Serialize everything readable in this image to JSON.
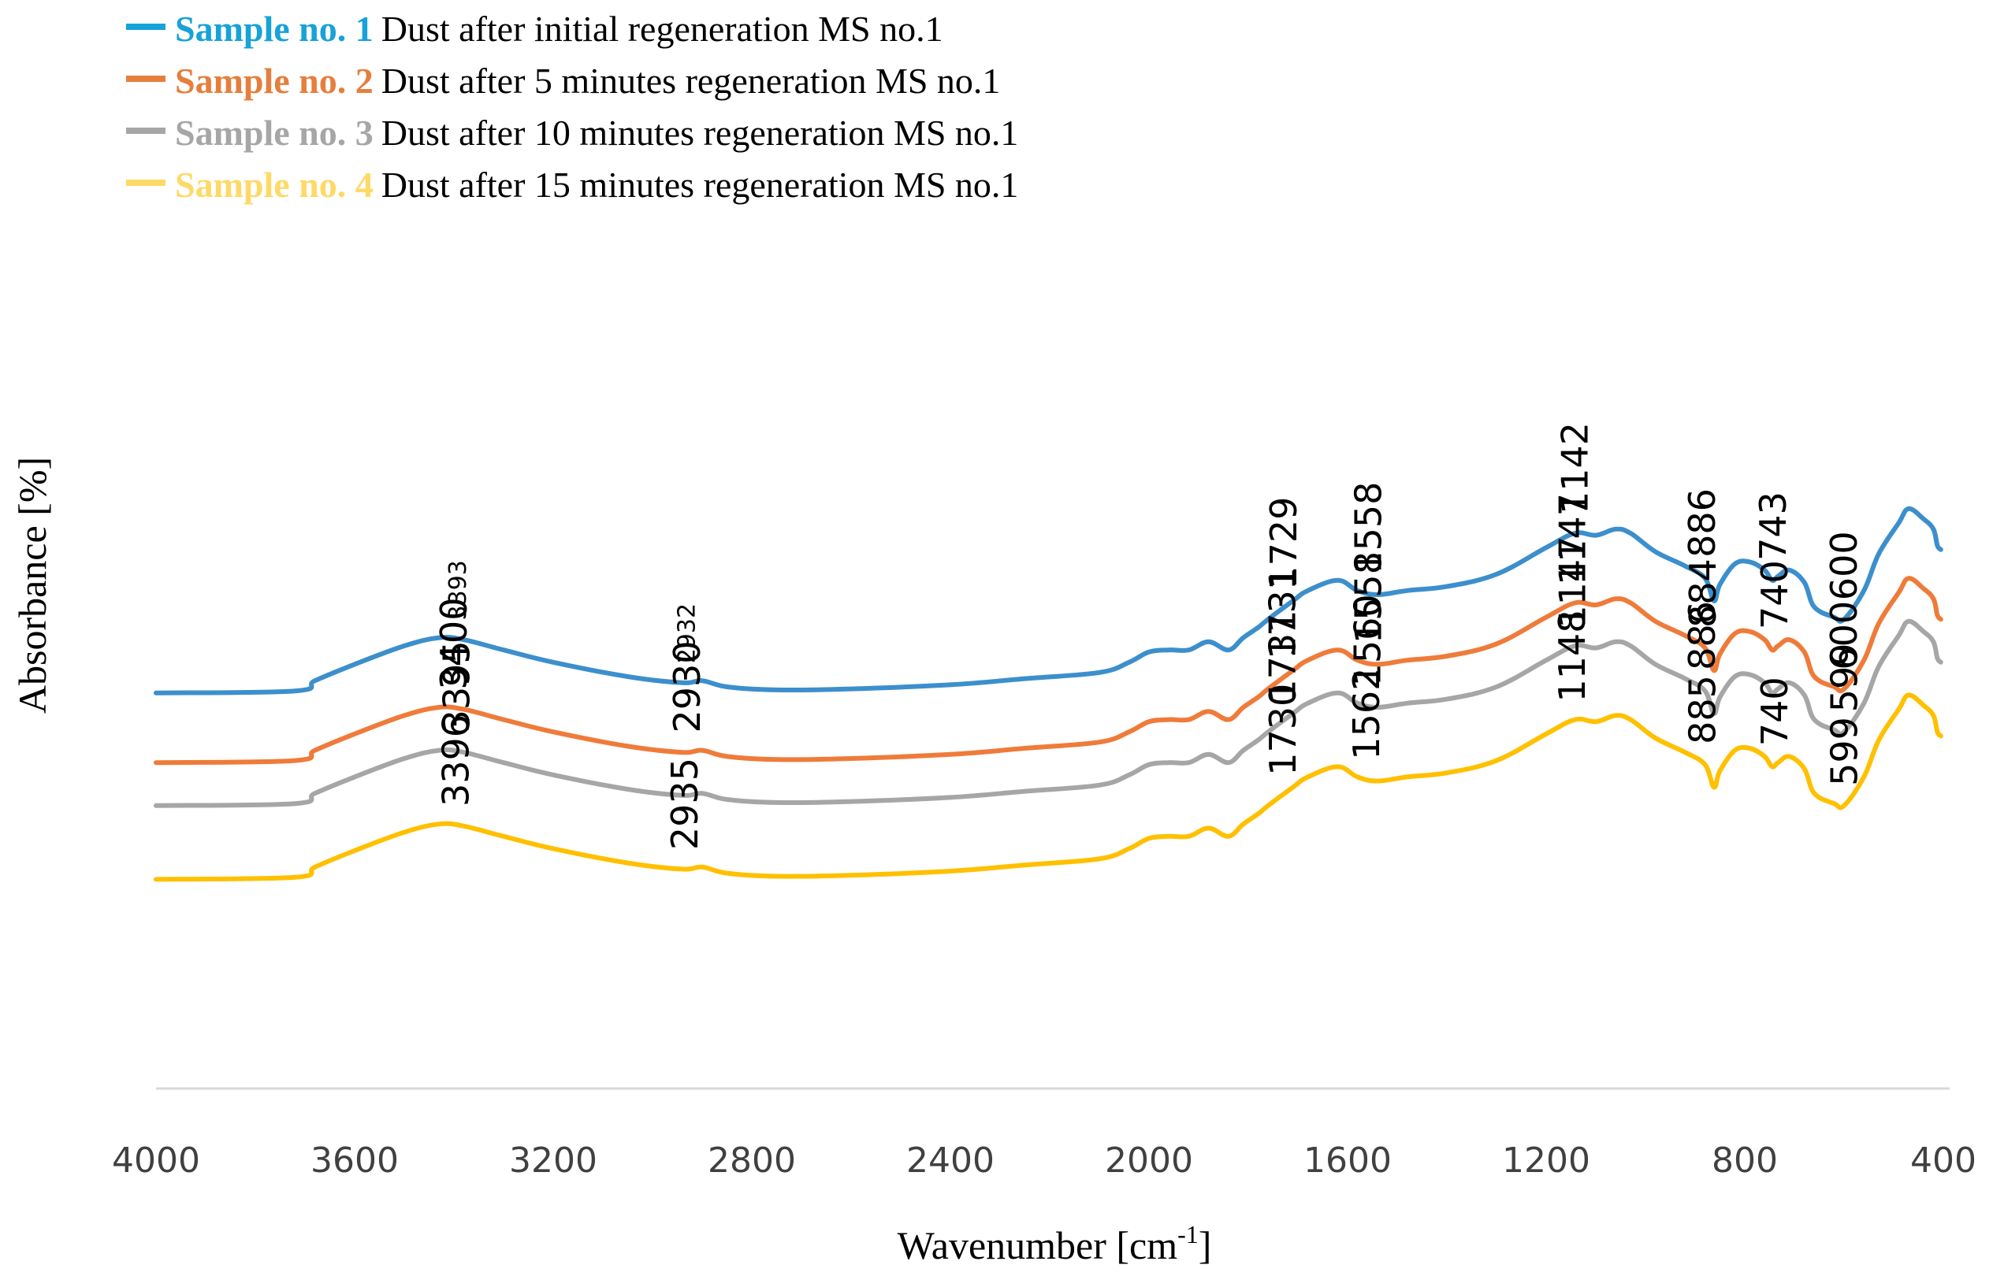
{
  "chart_data": {
    "type": "line",
    "title": "",
    "xlabel": "Wavenumber [cm-1]",
    "xlabel_main": "Wavenumber [cm",
    "xlabel_sup": "-1",
    "xlabel_end": "]",
    "ylabel": "Absorbance [%]",
    "xlim": [
      4000,
      400
    ],
    "x_reversed": true,
    "xticks": [
      "4000",
      "3600",
      "3200",
      "2800",
      "2400",
      "2000",
      "1600",
      "1200",
      "800",
      "400"
    ],
    "y_axis_ticks": false,
    "grid": false,
    "legend_position": "top-left",
    "series": [
      {
        "name": "Sample no. 1",
        "description": "Dust after initial regeneration MS no.1",
        "color": "#3c8fcc",
        "legend_color": "#17a2d8",
        "baseline": 1.27,
        "points": [
          [
            4000,
            0.0
          ],
          [
            3720,
            0.01
          ],
          [
            3680,
            0.06
          ],
          [
            3600,
            0.14
          ],
          [
            3500,
            0.23
          ],
          [
            3430,
            0.27
          ],
          [
            3380,
            0.26
          ],
          [
            3300,
            0.21
          ],
          [
            3200,
            0.15
          ],
          [
            3050,
            0.08
          ],
          [
            2940,
            0.05
          ],
          [
            2900,
            0.06
          ],
          [
            2850,
            0.03
          ],
          [
            2750,
            0.015
          ],
          [
            2600,
            0.02
          ],
          [
            2400,
            0.04
          ],
          [
            2250,
            0.07
          ],
          [
            2100,
            0.1
          ],
          [
            2040,
            0.15
          ],
          [
            2000,
            0.2
          ],
          [
            1960,
            0.21
          ],
          [
            1920,
            0.21
          ],
          [
            1880,
            0.25
          ],
          [
            1840,
            0.21
          ],
          [
            1810,
            0.27
          ],
          [
            1780,
            0.32
          ],
          [
            1760,
            0.36
          ],
          [
            1710,
            0.45
          ],
          [
            1680,
            0.5
          ],
          [
            1620,
            0.55
          ],
          [
            1580,
            0.5
          ],
          [
            1540,
            0.48
          ],
          [
            1480,
            0.5
          ],
          [
            1400,
            0.52
          ],
          [
            1300,
            0.58
          ],
          [
            1200,
            0.71
          ],
          [
            1142,
            0.78
          ],
          [
            1100,
            0.77
          ],
          [
            1060,
            0.8
          ],
          [
            1030,
            0.78
          ],
          [
            980,
            0.69
          ],
          [
            920,
            0.62
          ],
          [
            880,
            0.56
          ],
          [
            862,
            0.45
          ],
          [
            850,
            0.53
          ],
          [
            820,
            0.63
          ],
          [
            790,
            0.64
          ],
          [
            760,
            0.6
          ],
          [
            745,
            0.55
          ],
          [
            733,
            0.57
          ],
          [
            710,
            0.6
          ],
          [
            680,
            0.54
          ],
          [
            660,
            0.42
          ],
          [
            620,
            0.37
          ],
          [
            600,
            0.36
          ],
          [
            560,
            0.5
          ],
          [
            530,
            0.68
          ],
          [
            490,
            0.83
          ],
          [
            470,
            0.9
          ],
          [
            440,
            0.85
          ],
          [
            420,
            0.8
          ],
          [
            412,
            0.72
          ],
          [
            405,
            0.7
          ]
        ]
      },
      {
        "name": "Sample no. 2",
        "description": "Dust after 5 minutes regeneration MS no.1",
        "color": "#ef7b3a",
        "legend_color": "#e67e3c",
        "baseline": 0.93,
        "points": [
          [
            4000,
            0.0
          ],
          [
            3720,
            0.01
          ],
          [
            3680,
            0.06
          ],
          [
            3600,
            0.14
          ],
          [
            3500,
            0.23
          ],
          [
            3430,
            0.27
          ],
          [
            3380,
            0.26
          ],
          [
            3300,
            0.21
          ],
          [
            3200,
            0.15
          ],
          [
            3050,
            0.08
          ],
          [
            2940,
            0.05
          ],
          [
            2900,
            0.06
          ],
          [
            2850,
            0.03
          ],
          [
            2750,
            0.015
          ],
          [
            2600,
            0.02
          ],
          [
            2400,
            0.04
          ],
          [
            2250,
            0.07
          ],
          [
            2100,
            0.1
          ],
          [
            2040,
            0.15
          ],
          [
            2000,
            0.2
          ],
          [
            1960,
            0.21
          ],
          [
            1920,
            0.21
          ],
          [
            1880,
            0.25
          ],
          [
            1840,
            0.21
          ],
          [
            1810,
            0.27
          ],
          [
            1780,
            0.32
          ],
          [
            1760,
            0.36
          ],
          [
            1710,
            0.45
          ],
          [
            1680,
            0.5
          ],
          [
            1620,
            0.55
          ],
          [
            1580,
            0.5
          ],
          [
            1540,
            0.48
          ],
          [
            1480,
            0.5
          ],
          [
            1400,
            0.52
          ],
          [
            1300,
            0.58
          ],
          [
            1200,
            0.71
          ],
          [
            1142,
            0.78
          ],
          [
            1100,
            0.77
          ],
          [
            1060,
            0.8
          ],
          [
            1030,
            0.78
          ],
          [
            980,
            0.69
          ],
          [
            920,
            0.62
          ],
          [
            880,
            0.56
          ],
          [
            862,
            0.45
          ],
          [
            850,
            0.53
          ],
          [
            820,
            0.63
          ],
          [
            790,
            0.64
          ],
          [
            760,
            0.6
          ],
          [
            745,
            0.55
          ],
          [
            733,
            0.57
          ],
          [
            710,
            0.6
          ],
          [
            680,
            0.54
          ],
          [
            660,
            0.42
          ],
          [
            620,
            0.37
          ],
          [
            600,
            0.36
          ],
          [
            560,
            0.5
          ],
          [
            530,
            0.68
          ],
          [
            490,
            0.83
          ],
          [
            470,
            0.9
          ],
          [
            440,
            0.85
          ],
          [
            420,
            0.8
          ],
          [
            412,
            0.72
          ],
          [
            405,
            0.7
          ]
        ]
      },
      {
        "name": "Sample no. 3",
        "description": "Dust after 10 minutes regeneration MS no.1",
        "color": "#a6a6a6",
        "legend_color": "#a6a6a6",
        "baseline": 0.72,
        "points": [
          [
            4000,
            0.0
          ],
          [
            3720,
            0.01
          ],
          [
            3680,
            0.06
          ],
          [
            3600,
            0.14
          ],
          [
            3500,
            0.23
          ],
          [
            3430,
            0.27
          ],
          [
            3380,
            0.26
          ],
          [
            3300,
            0.21
          ],
          [
            3200,
            0.15
          ],
          [
            3050,
            0.08
          ],
          [
            2940,
            0.05
          ],
          [
            2900,
            0.06
          ],
          [
            2850,
            0.03
          ],
          [
            2750,
            0.015
          ],
          [
            2600,
            0.02
          ],
          [
            2400,
            0.04
          ],
          [
            2250,
            0.07
          ],
          [
            2100,
            0.1
          ],
          [
            2040,
            0.15
          ],
          [
            2000,
            0.2
          ],
          [
            1960,
            0.21
          ],
          [
            1920,
            0.21
          ],
          [
            1880,
            0.25
          ],
          [
            1840,
            0.21
          ],
          [
            1810,
            0.27
          ],
          [
            1780,
            0.32
          ],
          [
            1760,
            0.36
          ],
          [
            1710,
            0.45
          ],
          [
            1680,
            0.5
          ],
          [
            1620,
            0.55
          ],
          [
            1580,
            0.5
          ],
          [
            1540,
            0.48
          ],
          [
            1480,
            0.5
          ],
          [
            1400,
            0.52
          ],
          [
            1300,
            0.58
          ],
          [
            1200,
            0.71
          ],
          [
            1142,
            0.78
          ],
          [
            1100,
            0.77
          ],
          [
            1060,
            0.8
          ],
          [
            1030,
            0.78
          ],
          [
            980,
            0.69
          ],
          [
            920,
            0.62
          ],
          [
            880,
            0.56
          ],
          [
            862,
            0.45
          ],
          [
            850,
            0.53
          ],
          [
            820,
            0.63
          ],
          [
            790,
            0.64
          ],
          [
            760,
            0.6
          ],
          [
            745,
            0.55
          ],
          [
            733,
            0.57
          ],
          [
            710,
            0.6
          ],
          [
            680,
            0.54
          ],
          [
            660,
            0.42
          ],
          [
            620,
            0.37
          ],
          [
            600,
            0.36
          ],
          [
            560,
            0.5
          ],
          [
            530,
            0.68
          ],
          [
            490,
            0.83
          ],
          [
            470,
            0.9
          ],
          [
            440,
            0.85
          ],
          [
            420,
            0.8
          ],
          [
            412,
            0.72
          ],
          [
            405,
            0.7
          ]
        ]
      },
      {
        "name": "Sample no. 4",
        "description": "Dust after 15 minutes regeneration MS no.1",
        "color": "#ffc000",
        "legend_color": "#ffd966",
        "baseline": 0.36,
        "points": [
          [
            4000,
            0.0
          ],
          [
            3720,
            0.01
          ],
          [
            3680,
            0.06
          ],
          [
            3600,
            0.14
          ],
          [
            3500,
            0.23
          ],
          [
            3430,
            0.27
          ],
          [
            3380,
            0.26
          ],
          [
            3300,
            0.21
          ],
          [
            3200,
            0.15
          ],
          [
            3050,
            0.08
          ],
          [
            2940,
            0.05
          ],
          [
            2900,
            0.06
          ],
          [
            2850,
            0.03
          ],
          [
            2750,
            0.015
          ],
          [
            2600,
            0.02
          ],
          [
            2400,
            0.04
          ],
          [
            2250,
            0.07
          ],
          [
            2100,
            0.1
          ],
          [
            2040,
            0.15
          ],
          [
            2000,
            0.2
          ],
          [
            1960,
            0.21
          ],
          [
            1920,
            0.21
          ],
          [
            1880,
            0.25
          ],
          [
            1840,
            0.21
          ],
          [
            1810,
            0.27
          ],
          [
            1780,
            0.32
          ],
          [
            1760,
            0.36
          ],
          [
            1710,
            0.45
          ],
          [
            1680,
            0.5
          ],
          [
            1620,
            0.55
          ],
          [
            1580,
            0.5
          ],
          [
            1540,
            0.48
          ],
          [
            1480,
            0.5
          ],
          [
            1400,
            0.52
          ],
          [
            1300,
            0.58
          ],
          [
            1200,
            0.71
          ],
          [
            1142,
            0.78
          ],
          [
            1100,
            0.77
          ],
          [
            1060,
            0.8
          ],
          [
            1030,
            0.78
          ],
          [
            980,
            0.69
          ],
          [
            920,
            0.62
          ],
          [
            880,
            0.56
          ],
          [
            862,
            0.45
          ],
          [
            850,
            0.53
          ],
          [
            820,
            0.63
          ],
          [
            790,
            0.64
          ],
          [
            760,
            0.6
          ],
          [
            745,
            0.55
          ],
          [
            733,
            0.57
          ],
          [
            710,
            0.6
          ],
          [
            680,
            0.54
          ],
          [
            660,
            0.42
          ],
          [
            620,
            0.37
          ],
          [
            600,
            0.36
          ],
          [
            560,
            0.5
          ],
          [
            530,
            0.68
          ],
          [
            490,
            0.83
          ],
          [
            470,
            0.9
          ],
          [
            440,
            0.85
          ],
          [
            420,
            0.8
          ],
          [
            412,
            0.72
          ],
          [
            405,
            0.7
          ]
        ]
      }
    ],
    "annotations": [
      {
        "text": "3393",
        "series": 0,
        "x": 3393
      },
      {
        "text": "2932",
        "series": 0,
        "x": 2932
      },
      {
        "text": "1729",
        "series": 0,
        "x": 1729
      },
      {
        "text": "1558",
        "series": 0,
        "x": 1558
      },
      {
        "text": "1142",
        "series": 0,
        "x": 1142
      },
      {
        "text": "886",
        "series": 0,
        "x": 886
      },
      {
        "text": "743",
        "series": 0,
        "x": 743
      },
      {
        "text": "600",
        "series": 0,
        "x": 600
      },
      {
        "text": "3400",
        "series": 1,
        "x": 3400
      },
      {
        "text": "2930",
        "series": 1,
        "x": 2930
      },
      {
        "text": "1731",
        "series": 1,
        "x": 1731
      },
      {
        "text": "1558",
        "series": 1,
        "x": 1558
      },
      {
        "text": "1147",
        "series": 1,
        "x": 1147
      },
      {
        "text": "884",
        "series": 1,
        "x": 884
      },
      {
        "text": "740",
        "series": 1,
        "x": 740
      },
      {
        "text": "600",
        "series": 1,
        "x": 600
      },
      {
        "text": "3395",
        "series": 2,
        "x": 3395
      },
      {
        "text": "1731",
        "series": 2,
        "x": 1731
      },
      {
        "text": "1560",
        "series": 2,
        "x": 1560
      },
      {
        "text": "1147",
        "series": 2,
        "x": 1147
      },
      {
        "text": "886",
        "series": 2,
        "x": 886
      },
      {
        "text": "599",
        "series": 2,
        "x": 599
      },
      {
        "text": "3396",
        "series": 3,
        "x": 3396
      },
      {
        "text": "2935",
        "series": 3,
        "x": 2935
      },
      {
        "text": "1730",
        "series": 3,
        "x": 1730
      },
      {
        "text": "1562",
        "series": 3,
        "x": 1562
      },
      {
        "text": "1148",
        "series": 3,
        "x": 1148
      },
      {
        "text": "885",
        "series": 3,
        "x": 885
      },
      {
        "text": "740",
        "series": 3,
        "x": 740
      },
      {
        "text": "599",
        "series": 3,
        "x": 599
      }
    ]
  }
}
